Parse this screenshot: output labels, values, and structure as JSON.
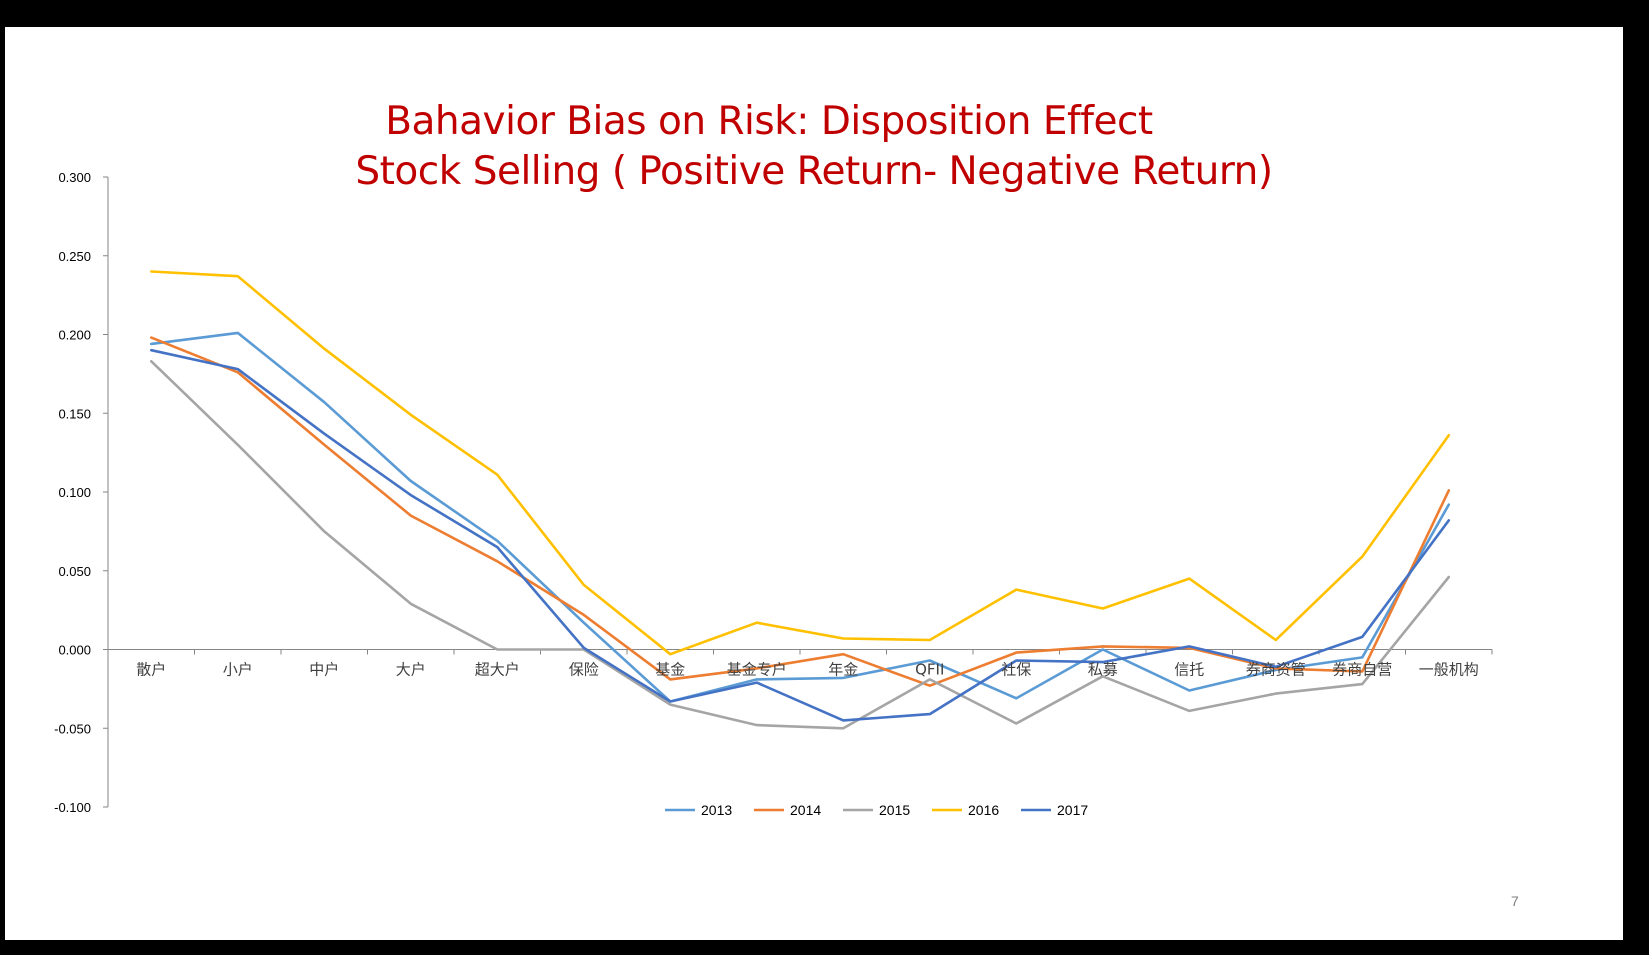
{
  "slide": {
    "title_line1": "Bahavior Bias on Risk: Disposition Effect",
    "title_line2": "Stock Selling ( Positive Return- Negative Return)",
    "page_number": "7"
  },
  "chart_data": {
    "type": "line",
    "title": "",
    "xlabel": "",
    "ylabel": "",
    "ylim": [
      -0.1,
      0.3
    ],
    "yticks": [
      0.3,
      0.25,
      0.2,
      0.15,
      0.1,
      0.05,
      0.0,
      -0.05,
      -0.1
    ],
    "ytick_labels": [
      "0.300",
      "0.250",
      "0.200",
      "0.150",
      "0.100",
      "0.050",
      "0.000",
      "-0.050",
      "-0.100"
    ],
    "grid": false,
    "legend_position": "bottom",
    "categories": [
      "散户",
      "小户",
      "中户",
      "大户",
      "超大户",
      "保险",
      "基金",
      "基金专户",
      "年金",
      "QFII",
      "社保",
      "私募",
      "信托",
      "券商资管",
      "券商自营",
      "一般机构"
    ],
    "series": [
      {
        "name": "2013",
        "color": "#5b9bd5",
        "values": [
          0.194,
          0.201,
          0.157,
          0.107,
          0.069,
          0.017,
          -0.033,
          -0.019,
          -0.018,
          -0.007,
          -0.031,
          0.0,
          -0.026,
          -0.013,
          -0.005,
          0.092
        ]
      },
      {
        "name": "2014",
        "color": "#ed7d31",
        "values": [
          0.198,
          0.176,
          0.13,
          0.085,
          0.056,
          0.022,
          -0.019,
          -0.012,
          -0.003,
          -0.023,
          -0.002,
          0.002,
          0.001,
          -0.012,
          -0.014,
          0.101
        ]
      },
      {
        "name": "2015",
        "color": "#a5a5a5",
        "values": [
          0.183,
          0.13,
          0.075,
          0.029,
          0.0,
          0.0,
          -0.035,
          -0.048,
          -0.05,
          -0.019,
          -0.047,
          -0.017,
          -0.039,
          -0.028,
          -0.022,
          0.046
        ]
      },
      {
        "name": "2016",
        "color": "#ffc000",
        "values": [
          0.24,
          0.237,
          0.191,
          0.149,
          0.111,
          0.041,
          -0.003,
          0.017,
          0.007,
          0.006,
          0.038,
          0.026,
          0.045,
          0.006,
          0.059,
          0.136
        ]
      },
      {
        "name": "2017",
        "color": "#4472c4",
        "values": [
          0.19,
          0.178,
          0.137,
          0.098,
          0.065,
          0.001,
          -0.033,
          -0.021,
          -0.045,
          -0.041,
          -0.007,
          -0.008,
          0.002,
          -0.011,
          0.008,
          0.082
        ]
      }
    ]
  }
}
